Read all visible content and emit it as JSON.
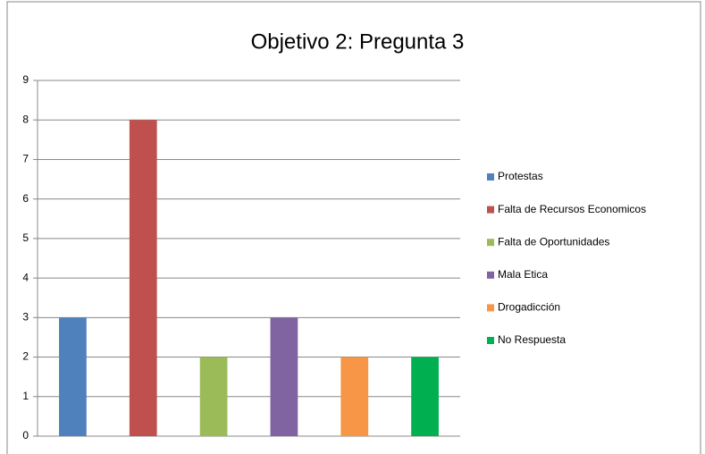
{
  "chart_data": {
    "type": "bar",
    "title": "Objetivo 2: Pregunta 3",
    "categories": [
      null
    ],
    "series": [
      {
        "name": "Protestas",
        "color": "#4f81bd",
        "values": [
          3
        ]
      },
      {
        "name": "Falta de Recursos Economicos",
        "color": "#c0504d",
        "values": [
          8
        ]
      },
      {
        "name": "Falta de Oportunidades",
        "color": "#9bbb59",
        "values": [
          2
        ]
      },
      {
        "name": "Mala Etica",
        "color": "#8064a2",
        "values": [
          3
        ]
      },
      {
        "name": "Drogadicción",
        "color": "#f79646",
        "values": [
          2
        ]
      },
      {
        "name": "No Respuesta",
        "color": "#00b050",
        "values": [
          2
        ]
      }
    ],
    "ylim": [
      0,
      9
    ],
    "yticks": [
      0,
      1,
      2,
      3,
      4,
      5,
      6,
      7,
      8,
      9
    ],
    "grid": true,
    "legend": "right"
  }
}
